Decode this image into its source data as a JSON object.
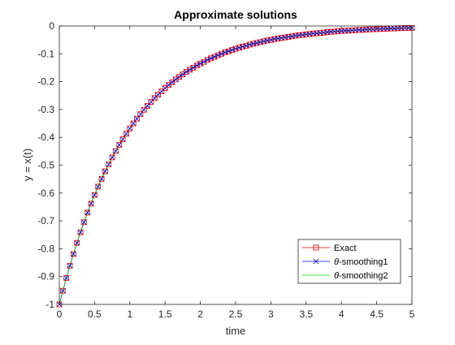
{
  "chart_data": {
    "type": "line",
    "title": "Approximate solutions",
    "xlabel": "time",
    "ylabel": "y = x(t)",
    "xlim": [
      0,
      5
    ],
    "ylim": [
      -1,
      0
    ],
    "xticks": [
      0,
      0.5,
      1,
      1.5,
      2,
      2.5,
      3,
      3.5,
      4,
      4.5,
      5
    ],
    "xtick_labels": [
      "0",
      "0.5",
      "1",
      "1.5",
      "2",
      "2.5",
      "3",
      "3.5",
      "4",
      "4.5",
      "5"
    ],
    "yticks": [
      -1,
      -0.9,
      -0.8,
      -0.7,
      -0.6,
      -0.5,
      -0.4,
      -0.3,
      -0.2,
      -0.1,
      0
    ],
    "ytick_labels": [
      "-1",
      "-0.9",
      "-0.8",
      "-0.7",
      "-0.6",
      "-0.5",
      "-0.4",
      "-0.3",
      "-0.2",
      "-0.1",
      "0"
    ],
    "grid": false,
    "legend_position": "bottom-right",
    "x": [
      0,
      0.05,
      0.1,
      0.15,
      0.2,
      0.25,
      0.3,
      0.35,
      0.4,
      0.45,
      0.5,
      0.55,
      0.6,
      0.65,
      0.7,
      0.75,
      0.8,
      0.85,
      0.9,
      0.95,
      1,
      1.05,
      1.1,
      1.15,
      1.2,
      1.25,
      1.3,
      1.35,
      1.4,
      1.45,
      1.5,
      1.55,
      1.6,
      1.65,
      1.7,
      1.75,
      1.8,
      1.85,
      1.9,
      1.95,
      2,
      2.05,
      2.1,
      2.15,
      2.2,
      2.25,
      2.3,
      2.35,
      2.4,
      2.45,
      2.5,
      2.55,
      2.6,
      2.65,
      2.7,
      2.75,
      2.8,
      2.85,
      2.9,
      2.95,
      3,
      3.05,
      3.1,
      3.15,
      3.2,
      3.25,
      3.3,
      3.35,
      3.4,
      3.45,
      3.5,
      3.55,
      3.6,
      3.65,
      3.7,
      3.75,
      3.8,
      3.85,
      3.9,
      3.95,
      4,
      4.05,
      4.1,
      4.15,
      4.2,
      4.25,
      4.3,
      4.35,
      4.4,
      4.45,
      4.5,
      4.55,
      4.6,
      4.65,
      4.7,
      4.75,
      4.8,
      4.85,
      4.9,
      4.95,
      5
    ],
    "series": [
      {
        "name": "Exact",
        "color": "#e00000",
        "marker": "square",
        "values": [
          -1,
          -0.951,
          -0.905,
          -0.861,
          -0.819,
          -0.779,
          -0.741,
          -0.705,
          -0.67,
          -0.638,
          -0.607,
          -0.577,
          -0.549,
          -0.522,
          -0.497,
          -0.472,
          -0.449,
          -0.427,
          -0.407,
          -0.387,
          -0.368,
          -0.35,
          -0.333,
          -0.317,
          -0.301,
          -0.287,
          -0.273,
          -0.259,
          -0.247,
          -0.235,
          -0.223,
          -0.212,
          -0.202,
          -0.192,
          -0.183,
          -0.174,
          -0.165,
          -0.157,
          -0.15,
          -0.142,
          -0.135,
          -0.129,
          -0.122,
          -0.116,
          -0.111,
          -0.105,
          -0.1,
          -0.095,
          -0.091,
          -0.086,
          -0.082,
          -0.078,
          -0.074,
          -0.071,
          -0.067,
          -0.064,
          -0.061,
          -0.058,
          -0.055,
          -0.052,
          -0.05,
          -0.047,
          -0.045,
          -0.043,
          -0.041,
          -0.039,
          -0.037,
          -0.035,
          -0.033,
          -0.032,
          -0.03,
          -0.029,
          -0.027,
          -0.026,
          -0.025,
          -0.024,
          -0.022,
          -0.021,
          -0.02,
          -0.019,
          -0.018,
          -0.017,
          -0.017,
          -0.016,
          -0.015,
          -0.014,
          -0.014,
          -0.013,
          -0.012,
          -0.012,
          -0.011,
          -0.011,
          -0.01,
          -0.01,
          -0.009,
          -0.009,
          -0.008,
          -0.008,
          -0.007,
          -0.007,
          -0.007
        ]
      },
      {
        "name": "θ-smoothing1",
        "color": "#0000e0",
        "marker": "x",
        "values": [
          -1,
          -0.951,
          -0.905,
          -0.861,
          -0.819,
          -0.779,
          -0.741,
          -0.705,
          -0.67,
          -0.638,
          -0.607,
          -0.577,
          -0.549,
          -0.522,
          -0.497,
          -0.472,
          -0.449,
          -0.427,
          -0.407,
          -0.387,
          -0.368,
          -0.35,
          -0.333,
          -0.317,
          -0.301,
          -0.287,
          -0.273,
          -0.259,
          -0.247,
          -0.235,
          -0.223,
          -0.212,
          -0.202,
          -0.192,
          -0.183,
          -0.174,
          -0.165,
          -0.157,
          -0.15,
          -0.142,
          -0.135,
          -0.129,
          -0.122,
          -0.116,
          -0.111,
          -0.105,
          -0.1,
          -0.095,
          -0.091,
          -0.086,
          -0.082,
          -0.078,
          -0.074,
          -0.071,
          -0.067,
          -0.064,
          -0.061,
          -0.058,
          -0.055,
          -0.052,
          -0.05,
          -0.047,
          -0.045,
          -0.043,
          -0.041,
          -0.039,
          -0.037,
          -0.035,
          -0.033,
          -0.032,
          -0.03,
          -0.029,
          -0.027,
          -0.026,
          -0.025,
          -0.024,
          -0.022,
          -0.021,
          -0.02,
          -0.019,
          -0.018,
          -0.017,
          -0.017,
          -0.016,
          -0.015,
          -0.014,
          -0.014,
          -0.013,
          -0.012,
          -0.012,
          -0.011,
          -0.011,
          -0.01,
          -0.01,
          -0.009,
          -0.009,
          -0.008,
          -0.008,
          -0.007,
          -0.007,
          -0.007
        ]
      },
      {
        "name": "θ-smoothing2",
        "color": "#00d000",
        "marker": "none",
        "values": [
          -1,
          -0.951,
          -0.905,
          -0.861,
          -0.819,
          -0.779,
          -0.741,
          -0.705,
          -0.67,
          -0.638,
          -0.607,
          -0.577,
          -0.549,
          -0.522,
          -0.497,
          -0.472,
          -0.449,
          -0.427,
          -0.407,
          -0.387,
          -0.368,
          -0.35,
          -0.333,
          -0.317,
          -0.301,
          -0.287,
          -0.273,
          -0.259,
          -0.247,
          -0.235,
          -0.223,
          -0.212,
          -0.202,
          -0.192,
          -0.183,
          -0.174,
          -0.165,
          -0.157,
          -0.15,
          -0.142,
          -0.135,
          -0.129,
          -0.122,
          -0.116,
          -0.111,
          -0.105,
          -0.1,
          -0.095,
          -0.091,
          -0.086,
          -0.082,
          -0.078,
          -0.074,
          -0.071,
          -0.067,
          -0.064,
          -0.061,
          -0.058,
          -0.055,
          -0.052,
          -0.05,
          -0.047,
          -0.045,
          -0.043,
          -0.041,
          -0.039,
          -0.037,
          -0.035,
          -0.033,
          -0.032,
          -0.03,
          -0.029,
          -0.027,
          -0.026,
          -0.025,
          -0.024,
          -0.022,
          -0.021,
          -0.02,
          -0.019,
          -0.018,
          -0.017,
          -0.017,
          -0.016,
          -0.015,
          -0.014,
          -0.014,
          -0.013,
          -0.012,
          -0.012,
          -0.011,
          -0.011,
          -0.01,
          -0.01,
          -0.009,
          -0.009,
          -0.008,
          -0.008,
          -0.007,
          -0.007,
          -0.007
        ]
      }
    ]
  }
}
